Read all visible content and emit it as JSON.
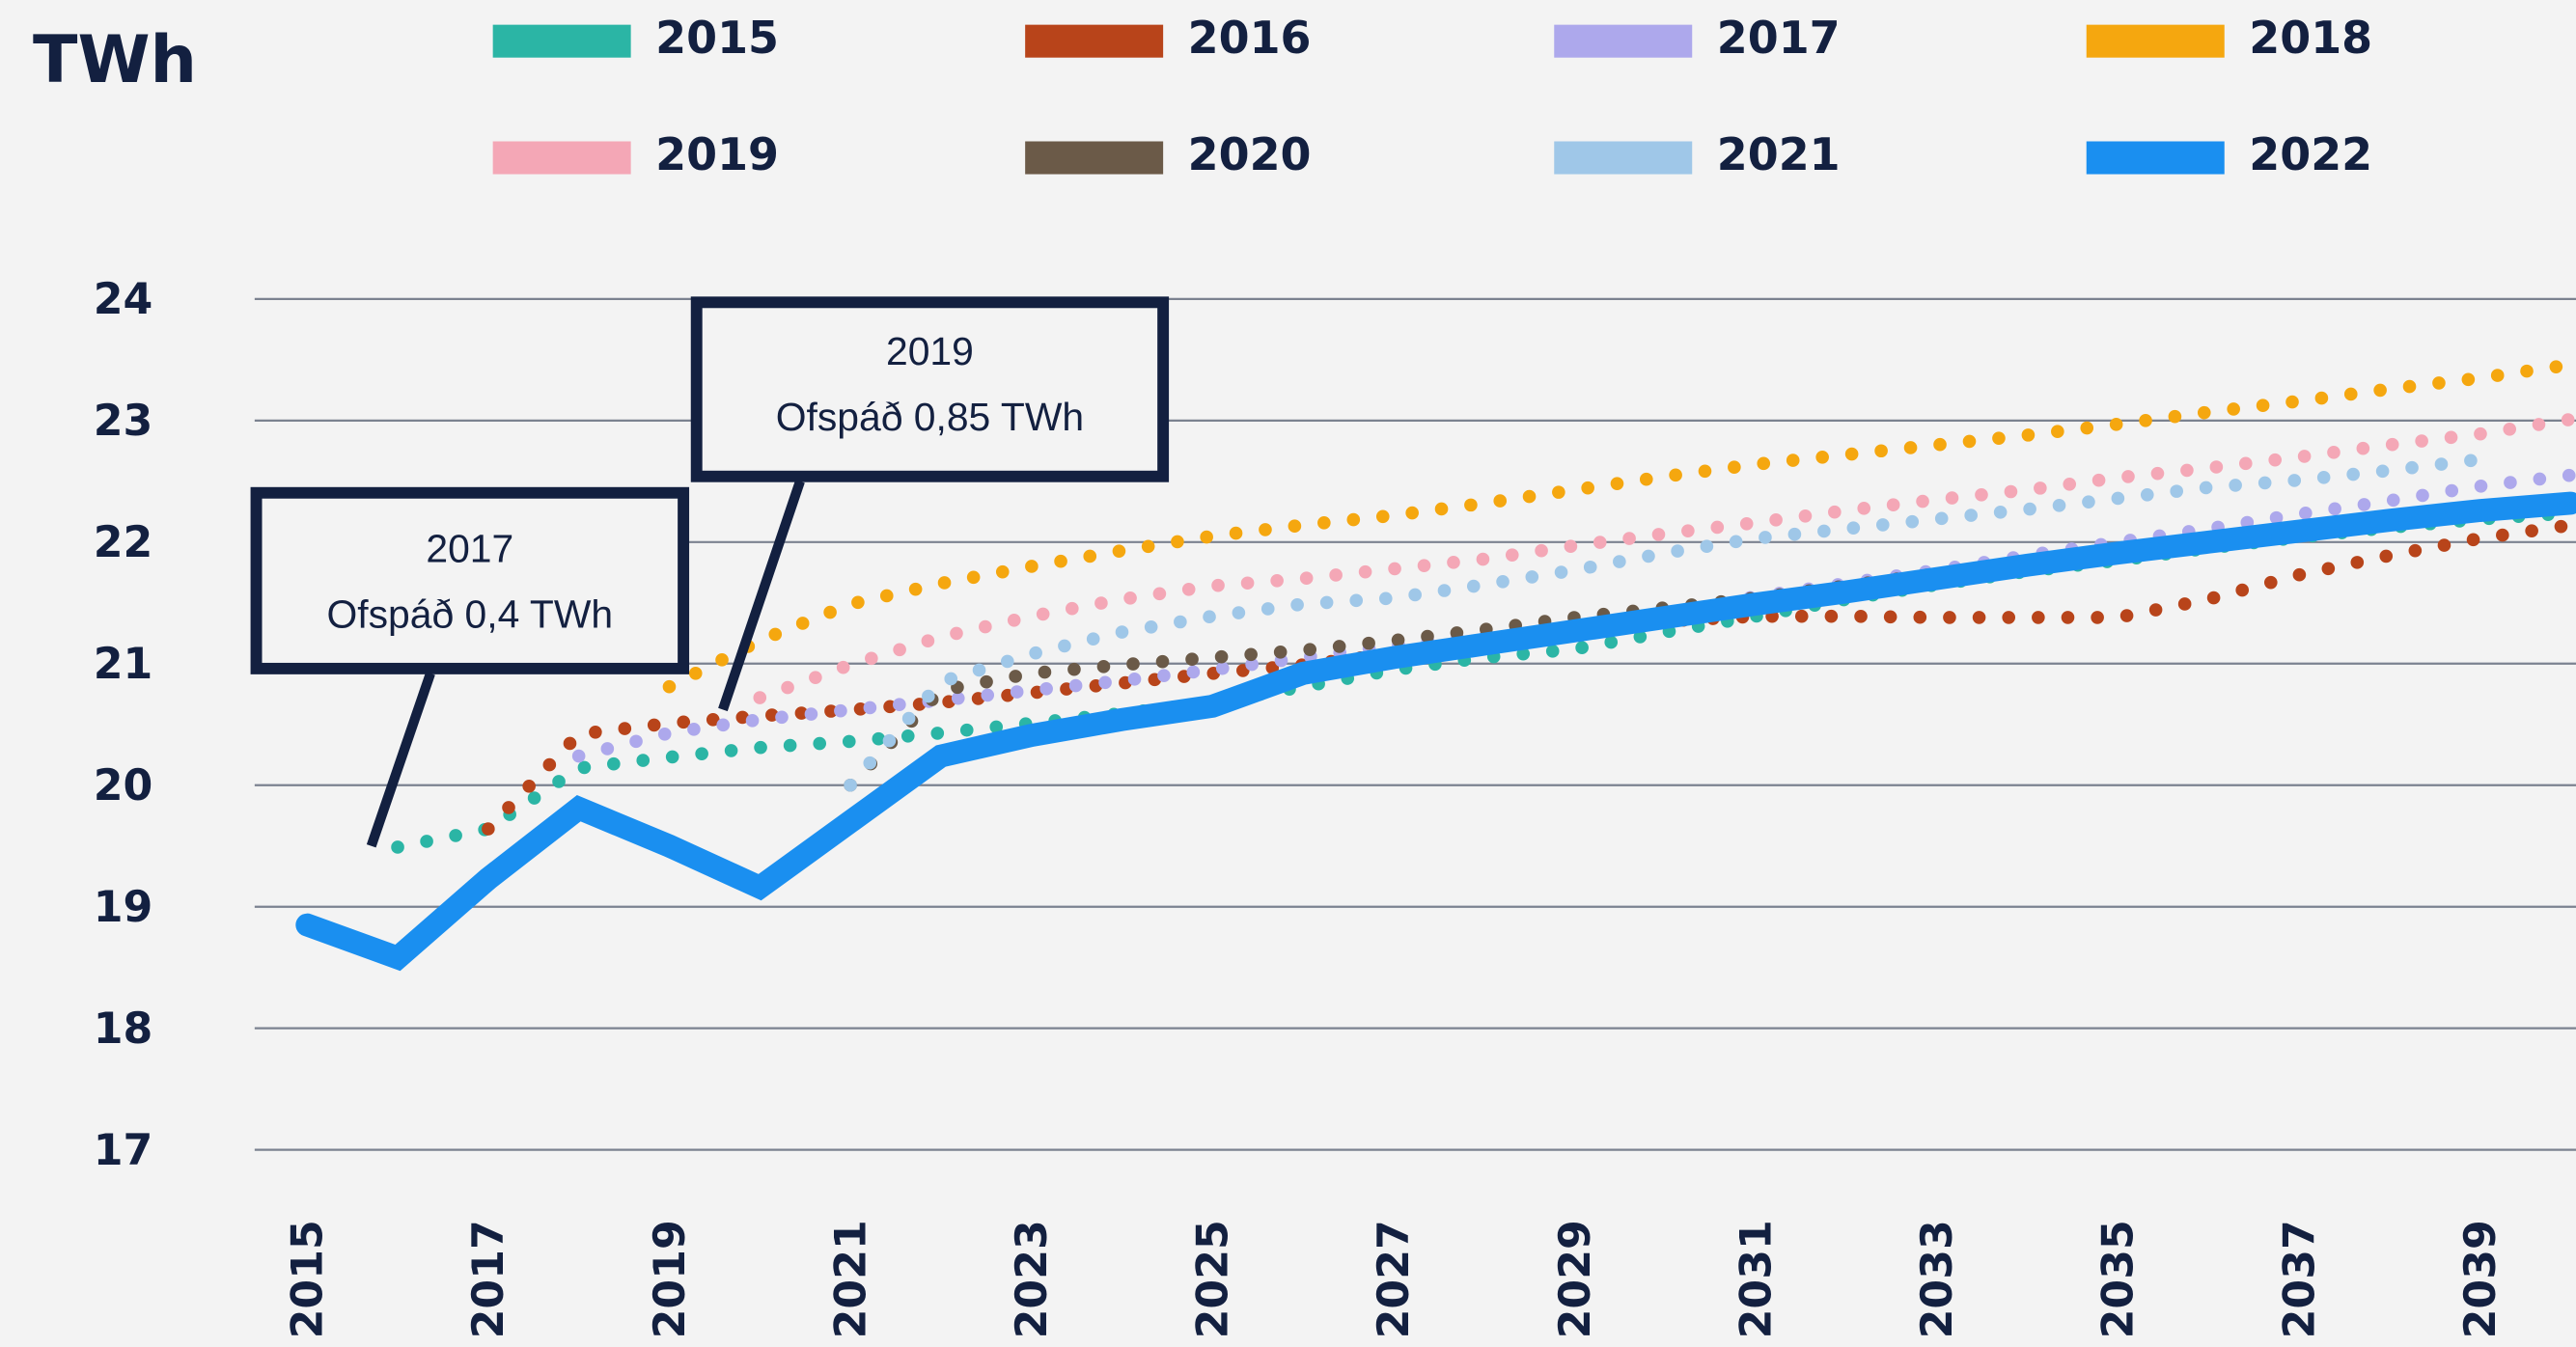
{
  "chart_data": {
    "type": "line",
    "y_label": "TWh",
    "x": [
      2015,
      2016,
      2017,
      2018,
      2019,
      2020,
      2021,
      2022,
      2023,
      2024,
      2025,
      2026,
      2027,
      2028,
      2029,
      2030,
      2031,
      2032,
      2033,
      2034,
      2035,
      2036,
      2037,
      2038,
      2039,
      2040
    ],
    "xlim": [
      2014.42,
      2040.06
    ],
    "xticks": [
      2015,
      2017,
      2019,
      2021,
      2023,
      2025,
      2027,
      2029,
      2031,
      2033,
      2035,
      2037,
      2039
    ],
    "ylim": [
      17,
      24
    ],
    "yticks": [
      17,
      18,
      19,
      20,
      21,
      22,
      23,
      24
    ],
    "grid": true,
    "legend": "top",
    "series": [
      {
        "name": "2015",
        "color": "#2bb5a5",
        "style": "dotted",
        "values": [
          null,
          19.49,
          19.64,
          20.14,
          20.23,
          20.31,
          20.36,
          20.43,
          20.51,
          20.59,
          20.68,
          20.81,
          20.95,
          21.05,
          21.12,
          21.26,
          21.39,
          21.53,
          21.65,
          21.76,
          21.85,
          21.95,
          22.04,
          22.12,
          22.19,
          22.24
        ]
      },
      {
        "name": "2016",
        "color": "#b8441a",
        "style": "dotted",
        "values": [
          null,
          null,
          19.64,
          20.42,
          20.51,
          20.57,
          20.62,
          20.68,
          20.76,
          20.84,
          20.92,
          20.99,
          21.08,
          21.19,
          21.28,
          21.35,
          21.39,
          21.39,
          21.38,
          21.38,
          21.38,
          21.53,
          21.73,
          21.89,
          22.03,
          22.14
        ]
      },
      {
        "name": "2017",
        "color": "#ada8ec",
        "style": "dotted",
        "values": [
          null,
          null,
          null,
          20.24,
          20.43,
          20.54,
          20.62,
          20.7,
          20.78,
          20.86,
          20.95,
          21.05,
          21.15,
          21.24,
          21.34,
          21.43,
          21.55,
          21.66,
          21.77,
          21.89,
          22.0,
          22.11,
          22.23,
          22.34,
          22.46,
          22.55
        ]
      },
      {
        "name": "2018",
        "color": "#f5a70f",
        "style": "dotted",
        "values": [
          null,
          null,
          null,
          null,
          20.81,
          21.19,
          21.49,
          21.66,
          21.8,
          21.93,
          22.05,
          22.14,
          22.22,
          22.32,
          22.43,
          22.54,
          22.64,
          22.72,
          22.8,
          22.88,
          22.97,
          23.07,
          23.16,
          23.26,
          23.35,
          23.46
        ]
      },
      {
        "name": "2019",
        "color": "#f4a7b6",
        "style": "dotted",
        "values": [
          null,
          null,
          null,
          null,
          null,
          20.72,
          20.99,
          21.22,
          21.39,
          21.53,
          21.64,
          21.7,
          21.78,
          21.86,
          21.97,
          22.07,
          22.16,
          22.26,
          22.35,
          22.43,
          22.53,
          22.61,
          22.7,
          22.8,
          22.89,
          23.01
        ]
      },
      {
        "name": "2020",
        "color": "#6b5a48",
        "style": "dotted",
        "values": [
          null,
          null,
          null,
          null,
          null,
          null,
          20.0,
          20.78,
          20.92,
          20.99,
          21.05,
          21.11,
          21.19,
          21.28,
          21.38,
          21.46,
          21.54,
          21.64,
          21.74,
          21.84,
          21.93,
          22.03,
          22.09,
          22.16,
          22.23,
          22.3
        ]
      },
      {
        "name": "2021",
        "color": "#9fc7e8",
        "style": "dotted",
        "values": [
          null,
          null,
          null,
          null,
          null,
          null,
          20.0,
          20.85,
          21.08,
          21.26,
          21.39,
          21.49,
          21.54,
          21.65,
          21.77,
          21.91,
          22.03,
          22.11,
          22.19,
          22.27,
          22.36,
          22.45,
          22.51,
          22.59,
          22.68,
          null
        ]
      },
      {
        "name": "2022",
        "color": "#1a8ff0",
        "style": "solid",
        "values": [
          18.85,
          18.58,
          19.23,
          19.81,
          19.5,
          19.16,
          19.7,
          20.24,
          20.41,
          20.54,
          20.65,
          20.92,
          21.05,
          21.16,
          21.27,
          21.38,
          21.49,
          21.59,
          21.7,
          21.81,
          21.91,
          22.0,
          22.09,
          22.18,
          22.26,
          22.32
        ]
      }
    ],
    "annotations": [
      {
        "title": "2017",
        "text": "Ofspáð 0,4 TWh"
      },
      {
        "title": "2019",
        "text": "Ofspáð 0,85 TWh"
      }
    ]
  }
}
